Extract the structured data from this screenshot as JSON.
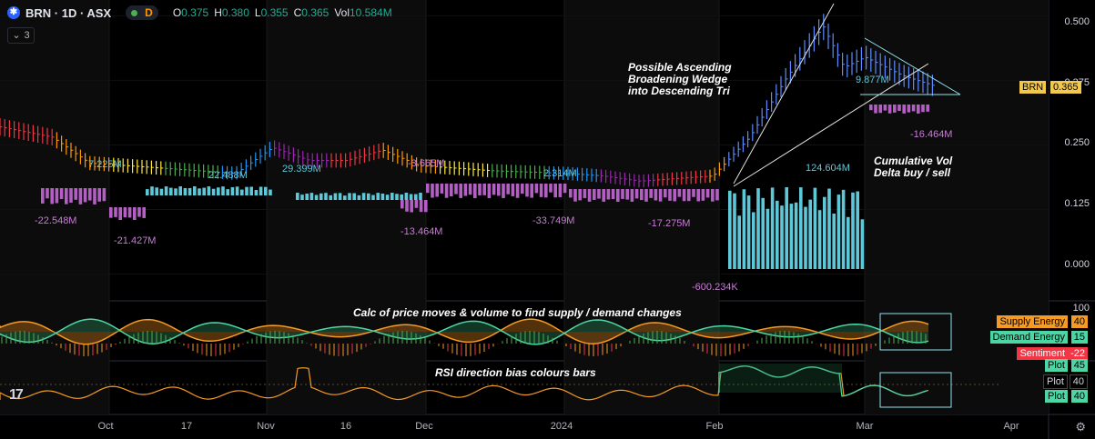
{
  "header": {
    "symbol": "BRN · 1D · ASX",
    "logo_icon": "asterisk",
    "market_status_letter": "D",
    "ohlc": {
      "o_label": "O",
      "o": "0.375",
      "h_label": "H",
      "h": "0.380",
      "l_label": "L",
      "l": "0.355",
      "c_label": "C",
      "c": "0.365",
      "vol_label": "Vol",
      "vol": "10.584M"
    },
    "indicator_count": "3"
  },
  "annotations": {
    "pattern_note": "Possible Ascending\nBroadening Wedge\ninto Descending Tri",
    "delta_note": "Cumulative Vol\nDelta buy / sell",
    "supply_demand_note": "Calc of price moves & volume to find supply / demand changes",
    "rsi_note": "RSI direction bias colours bars"
  },
  "price_axis": {
    "ticks": [
      "0.500",
      "0.375",
      "0.250",
      "0.125",
      "0.000"
    ],
    "current_label": "BRN",
    "current_value": "0.365"
  },
  "osc_axis": {
    "top": "100"
  },
  "legend_badges": [
    {
      "label": "Supply Energy",
      "value": "40",
      "color": "#f59a23"
    },
    {
      "label": "Demand Energy",
      "value": "15",
      "color": "#4dd6a5"
    },
    {
      "label": "Sentiment",
      "value": "-22",
      "color": "#f23645"
    }
  ],
  "rsi_badges": [
    {
      "label": "Plot",
      "value": "45",
      "color": "#4dd6a5"
    },
    {
      "label": "Plot",
      "value": "40",
      "color": "#000000"
    },
    {
      "label": "Plot",
      "value": "40",
      "color": "#4dd6a5"
    }
  ],
  "x_axis_labels": [
    "Oct",
    "17",
    "Nov",
    "16",
    "Dec",
    "2024",
    "Feb",
    "Mar",
    "Apr"
  ],
  "chart_data": [
    {
      "type": "line",
      "title": "",
      "x_range": [
        "2023-09-18",
        "2024-04-05"
      ],
      "ylim": [
        -0.05,
        0.52
      ],
      "series": [
        {
          "dates": [
            "2023-09-18",
            "2023-09-28",
            "2023-10-05",
            "2023-10-12",
            "2023-10-19",
            "2023-10-26",
            "2023-11-02",
            "2023-11-09",
            "2023-11-16",
            "2023-11-23",
            "2023-11-30",
            "2023-12-07",
            "2023-12-14",
            "2023-12-21",
            "2024-01-04",
            "2024-01-11",
            "2024-01-18",
            "2024-01-25",
            "2024-02-01",
            "2024-02-08",
            "2024-02-15",
            "2024-02-22",
            "2024-02-26",
            "2024-03-01",
            "2024-03-08",
            "2024-03-14"
          ],
          "values": [
            0.285,
            0.265,
            0.215,
            0.21,
            0.205,
            0.2,
            0.195,
            0.245,
            0.22,
            0.22,
            0.24,
            0.21,
            0.205,
            0.2,
            0.195,
            0.19,
            0.18,
            0.185,
            0.19,
            0.265,
            0.38,
            0.48,
            0.4,
            0.42,
            0.385,
            0.365
          ]
        }
      ],
      "cumulative_volume_delta_labels": [
        "7.225M",
        "-22.548M",
        "-21.427M",
        "22.488M",
        "29.399M",
        "-3.665M",
        "-13.464M",
        "2.314M",
        "-33.749M",
        "-17.275M",
        "-600.234K",
        "124.604M",
        "9.877M",
        "-16.464M"
      ]
    },
    {
      "type": "area",
      "title": "Calc of price moves & volume to find supply / demand changes",
      "series": [
        {
          "name": "Supply Energy",
          "value": 40
        },
        {
          "name": "Demand Energy",
          "value": 15
        },
        {
          "name": "Sentiment",
          "value": -22
        }
      ]
    },
    {
      "type": "line",
      "title": "RSI direction bias colours bars",
      "series": [
        {
          "name": "Plot",
          "value": 45
        },
        {
          "name": "Plot",
          "value": 40
        },
        {
          "name": "Plot",
          "value": 40
        }
      ]
    }
  ]
}
